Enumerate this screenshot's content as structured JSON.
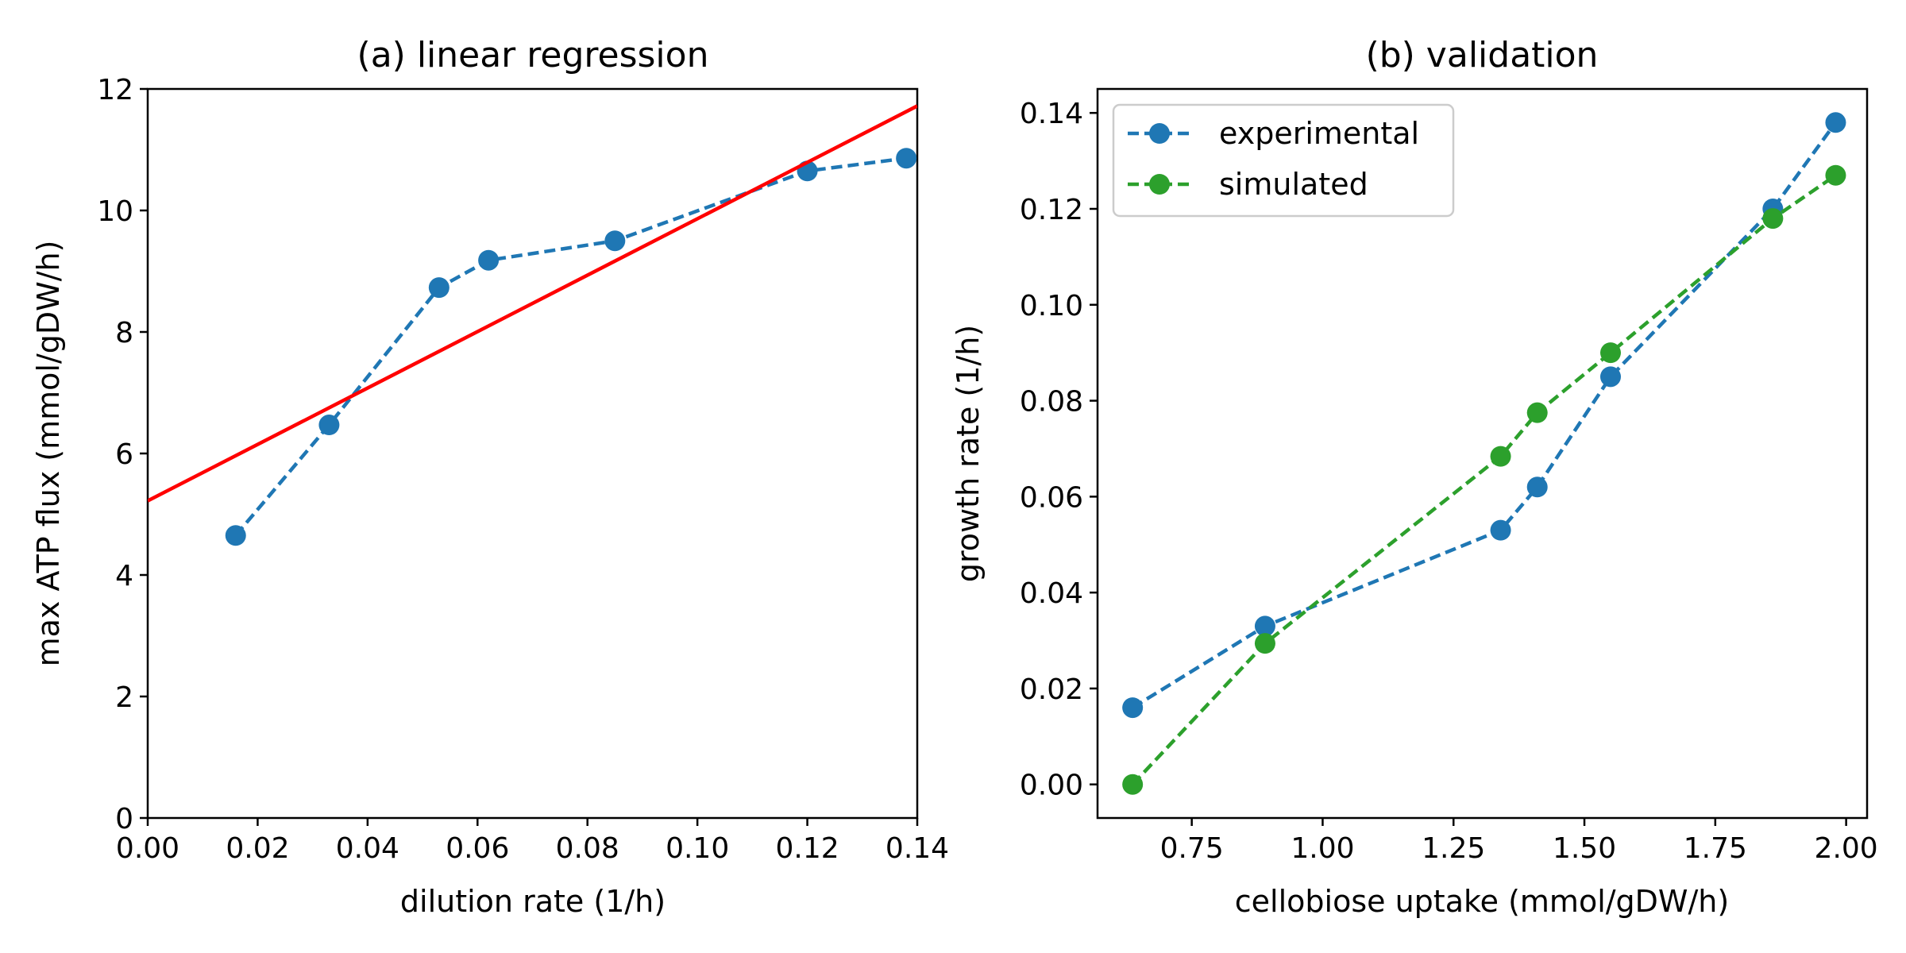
{
  "chart_data": [
    {
      "type": "line",
      "title": "(a) linear regression",
      "xlabel": "dilution rate (1/h)",
      "ylabel": "max ATP flux (mmol/gDW/h)",
      "xlim": [
        0.0,
        0.14
      ],
      "ylim": [
        0,
        12
      ],
      "xticks": [
        "0.00",
        "0.02",
        "0.04",
        "0.06",
        "0.08",
        "0.10",
        "0.12",
        "0.14"
      ],
      "yticks": [
        "0",
        "2",
        "4",
        "6",
        "8",
        "10",
        "12"
      ],
      "grid": false,
      "series": [
        {
          "style": "dashed-markers",
          "color": "#1f77b4",
          "x": [
            0.016,
            0.033,
            0.053,
            0.062,
            0.085,
            0.12,
            0.138
          ],
          "y": [
            4.65,
            6.47,
            8.73,
            9.18,
            9.5,
            10.65,
            10.86
          ]
        },
        {
          "style": "solid-line",
          "color": "#ff0000",
          "x": [
            0.0,
            0.14
          ],
          "y": [
            5.22,
            11.72
          ]
        }
      ]
    },
    {
      "type": "line",
      "title": "(b) validation",
      "xlabel": "cellobiose uptake (mmol/gDW/h)",
      "ylabel": "growth rate (1/h)",
      "xlim": [
        0.57,
        2.04
      ],
      "ylim": [
        -0.007,
        0.145
      ],
      "xticks": [
        "0.75",
        "1.00",
        "1.25",
        "1.50",
        "1.75",
        "2.00"
      ],
      "yticks": [
        "0.00",
        "0.02",
        "0.04",
        "0.06",
        "0.08",
        "0.10",
        "0.12",
        "0.14"
      ],
      "grid": false,
      "legend_position": "top-left",
      "series": [
        {
          "name": "experimental",
          "style": "dashed-markers",
          "color": "#1f77b4",
          "x": [
            0.637,
            0.89,
            1.34,
            1.41,
            1.55,
            1.86,
            1.98
          ],
          "y": [
            0.016,
            0.033,
            0.053,
            0.062,
            0.085,
            0.12,
            0.138
          ]
        },
        {
          "name": "simulated",
          "style": "dashed-markers",
          "color": "#2ca02c",
          "x": [
            0.637,
            0.89,
            1.34,
            1.41,
            1.55,
            1.86,
            1.98
          ],
          "y": [
            0.0,
            0.0294,
            0.0684,
            0.0775,
            0.09,
            0.118,
            0.127
          ]
        }
      ]
    }
  ]
}
